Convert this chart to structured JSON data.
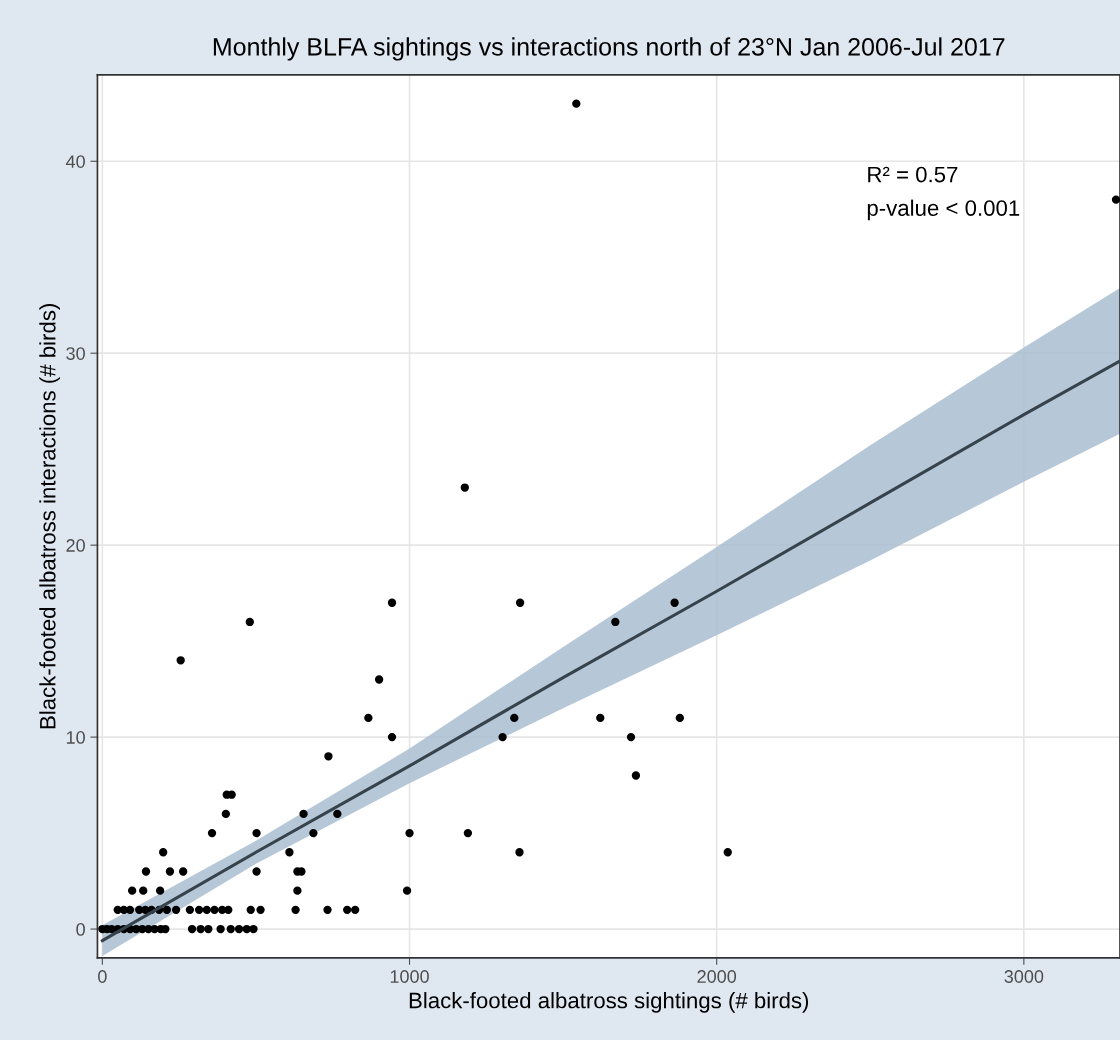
{
  "chart_data": {
    "type": "scatter",
    "title": "Monthly BLFA sightings vs interactions north of 23°N Jan 2006-Jul 2017",
    "xlabel": "Black-footed albatross sightings (# birds)",
    "ylabel": "Black-footed albatross interactions (# birds)",
    "annotations": [
      "R² = 0.57",
      "p-value < 0.001"
    ],
    "xlim": [
      -16,
      3313
    ],
    "ylim": [
      -1.5,
      44.5
    ],
    "xticks": [
      0,
      1000,
      2000,
      3000
    ],
    "yticks": [
      0,
      10,
      20,
      30,
      40
    ],
    "grid": true,
    "legend": false,
    "series": [
      {
        "marker": "circle",
        "color": "#000000",
        "x": [
          0,
          15,
          30,
          50,
          70,
          90,
          110,
          130,
          150,
          170,
          190,
          205,
          292,
          320,
          345,
          385,
          418,
          445,
          470,
          492,
          50,
          70,
          90,
          120,
          140,
          160,
          185,
          210,
          240,
          285,
          315,
          340,
          365,
          390,
          410,
          483,
          515,
          629,
          733,
          797,
          823,
          97,
          133,
          188,
          635,
          992,
          142,
          220,
          263,
          502,
          635,
          648,
          198,
          609,
          1358,
          2036,
          357,
          502,
          687,
          1000,
          1190,
          402,
          655,
          765,
          405,
          421,
          1737,
          736,
          943,
          1303,
          1721,
          866,
          1341,
          1621,
          1880,
          901,
          255,
          480,
          1670,
          943,
          1360,
          1863,
          1180,
          3300,
          1543
        ],
        "values": [
          0,
          0,
          0,
          0,
          0,
          0,
          0,
          0,
          0,
          0,
          0,
          0,
          0,
          0,
          0,
          0,
          0,
          0,
          0,
          0,
          1,
          1,
          1,
          1,
          1,
          1,
          1,
          1,
          1,
          1,
          1,
          1,
          1,
          1,
          1,
          1,
          1,
          1,
          1,
          1,
          1,
          2,
          2,
          2,
          2,
          2,
          3,
          3,
          3,
          3,
          3,
          3,
          4,
          4,
          4,
          4,
          5,
          5,
          5,
          5,
          5,
          6,
          6,
          6,
          7,
          7,
          8,
          9,
          10,
          10,
          10,
          11,
          11,
          11,
          11,
          13,
          14,
          16,
          16,
          17,
          17,
          17,
          23,
          38,
          43
        ]
      },
      {
        "type": "line",
        "color": "#36434d",
        "x": [
          0,
          500,
          1000,
          1500,
          2000,
          2500,
          3000,
          3313
        ],
        "values": [
          -0.6,
          4.0,
          8.5,
          13.1,
          17.6,
          22.2,
          26.8,
          29.6
        ],
        "lower": [
          -1.4,
          3.4,
          7.6,
          11.5,
          15.3,
          19.2,
          23.3,
          25.8
        ],
        "upper": [
          0.2,
          4.6,
          9.4,
          14.7,
          19.9,
          25.2,
          30.3,
          33.4
        ]
      }
    ]
  }
}
